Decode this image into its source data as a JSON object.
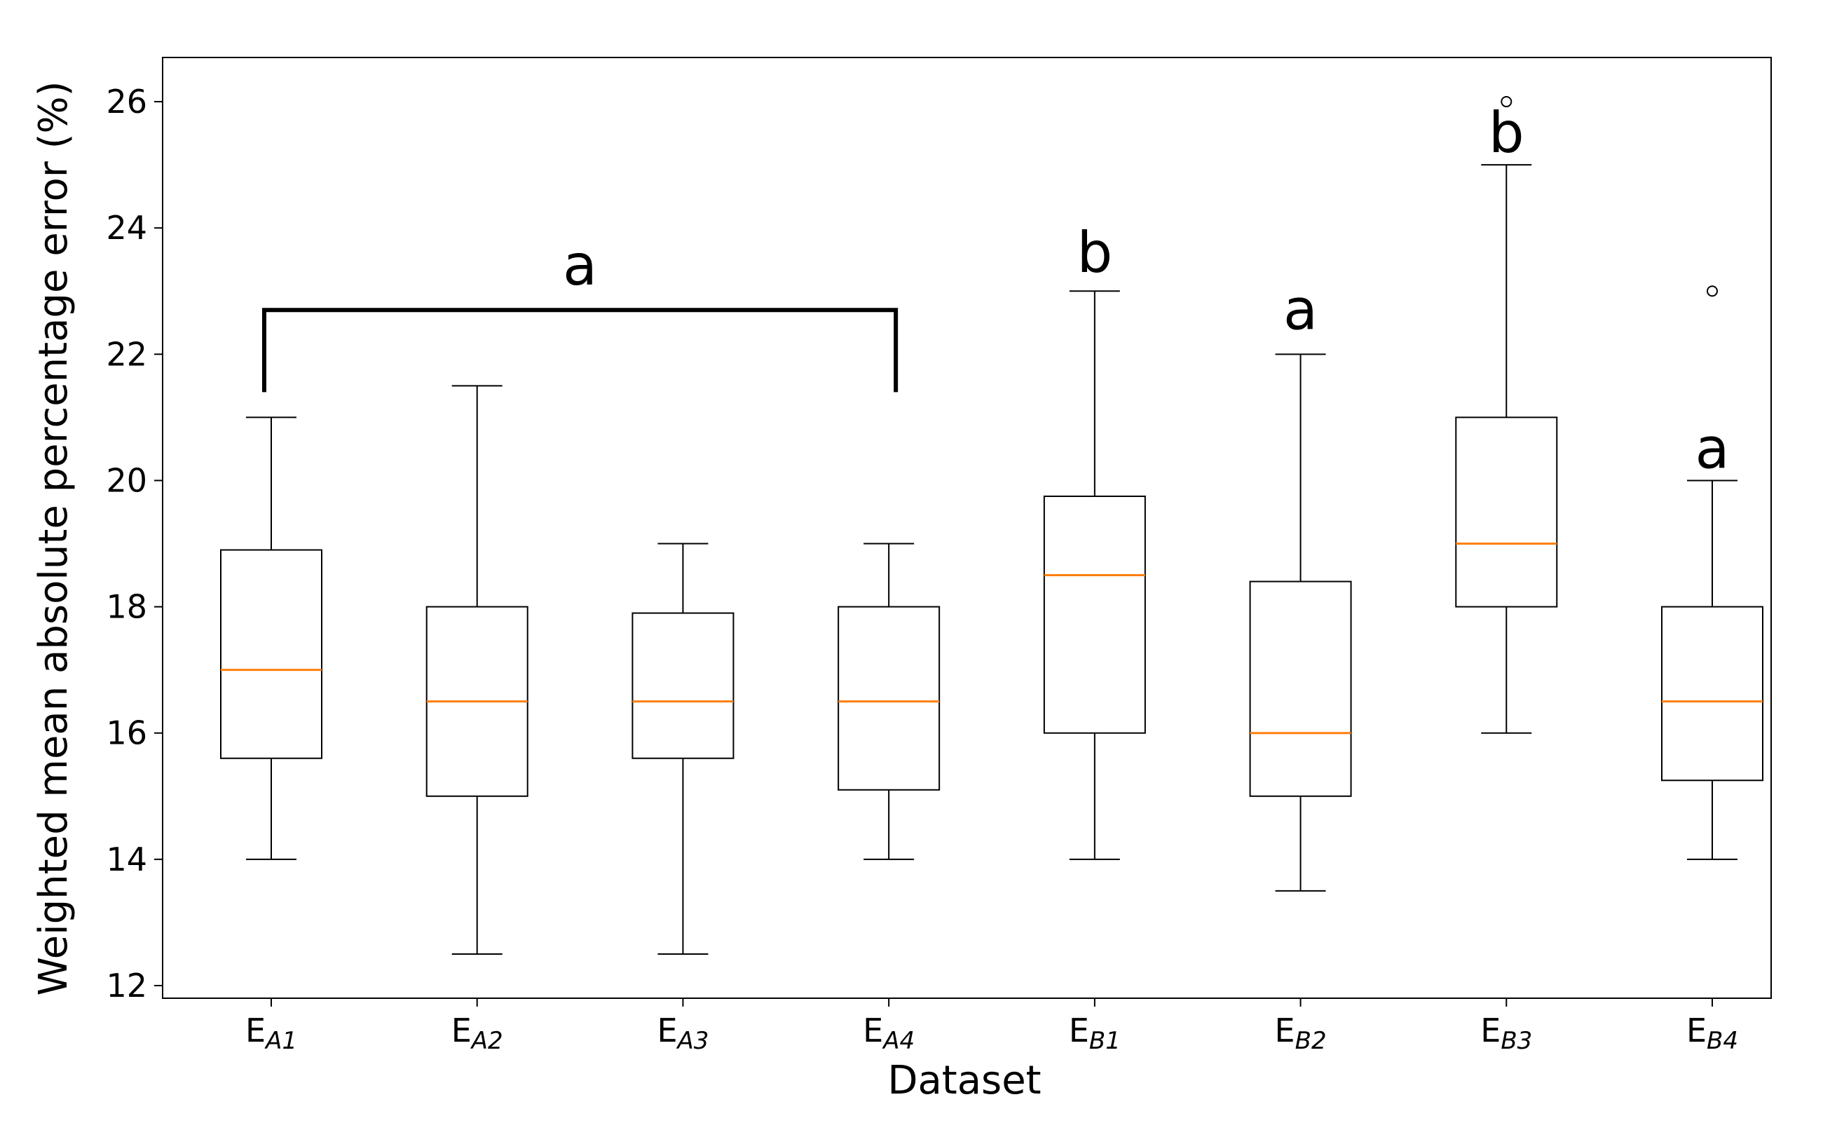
{
  "chart_data": {
    "type": "boxplot",
    "title": "",
    "xlabel": "Dataset",
    "ylabel": "Weighted mean absolute percentage error (%)",
    "ylim": [
      11.8,
      26.7
    ],
    "yticks": [
      12,
      14,
      16,
      18,
      20,
      22,
      24,
      26
    ],
    "categories": [
      {
        "base": "E",
        "sub": "A1"
      },
      {
        "base": "E",
        "sub": "A2"
      },
      {
        "base": "E",
        "sub": "A3"
      },
      {
        "base": "E",
        "sub": "A4"
      },
      {
        "base": "E",
        "sub": "B1"
      },
      {
        "base": "E",
        "sub": "B2"
      },
      {
        "base": "E",
        "sub": "B3"
      },
      {
        "base": "E",
        "sub": "B4"
      }
    ],
    "boxes": [
      {
        "whislo": 14.0,
        "q1": 15.6,
        "med": 17.0,
        "q3": 18.9,
        "whishi": 21.0,
        "fliers": []
      },
      {
        "whislo": 12.5,
        "q1": 15.0,
        "med": 16.5,
        "q3": 18.0,
        "whishi": 21.5,
        "fliers": []
      },
      {
        "whislo": 12.5,
        "q1": 15.6,
        "med": 16.5,
        "q3": 17.9,
        "whishi": 19.0,
        "fliers": []
      },
      {
        "whislo": 14.0,
        "q1": 15.1,
        "med": 16.5,
        "q3": 18.0,
        "whishi": 19.0,
        "fliers": []
      },
      {
        "whislo": 14.0,
        "q1": 16.0,
        "med": 18.5,
        "q3": 19.75,
        "whishi": 23.0,
        "fliers": []
      },
      {
        "whislo": 13.5,
        "q1": 15.0,
        "med": 16.0,
        "q3": 18.4,
        "whishi": 22.0,
        "fliers": []
      },
      {
        "whislo": 16.0,
        "q1": 18.0,
        "med": 19.0,
        "q3": 21.0,
        "whishi": 25.0,
        "fliers": [
          26.0
        ]
      },
      {
        "whislo": 14.0,
        "q1": 15.25,
        "med": 16.5,
        "q3": 18.0,
        "whishi": 20.0,
        "fliers": [
          23.0
        ]
      }
    ],
    "significance": [
      {
        "label": "a",
        "from": 0,
        "to": 3,
        "bracket": true,
        "bracket_y": 22.7,
        "bracket_low": 21.4,
        "label_y": 23.1
      },
      {
        "label": "b",
        "from": 4,
        "to": 4,
        "bracket": false,
        "label_y": 23.3
      },
      {
        "label": "a",
        "from": 5,
        "to": 5,
        "bracket": false,
        "label_y": 22.4
      },
      {
        "label": "b",
        "from": 6,
        "to": 6,
        "bracket": false,
        "label_y": 25.2
      },
      {
        "label": "a",
        "from": 7,
        "to": 7,
        "bracket": false,
        "label_y": 20.2
      }
    ],
    "colors": {
      "box": "#000000",
      "median": "#ff7f0e",
      "axes": "#000000",
      "bracket": "#000000",
      "background": "#ffffff"
    }
  }
}
